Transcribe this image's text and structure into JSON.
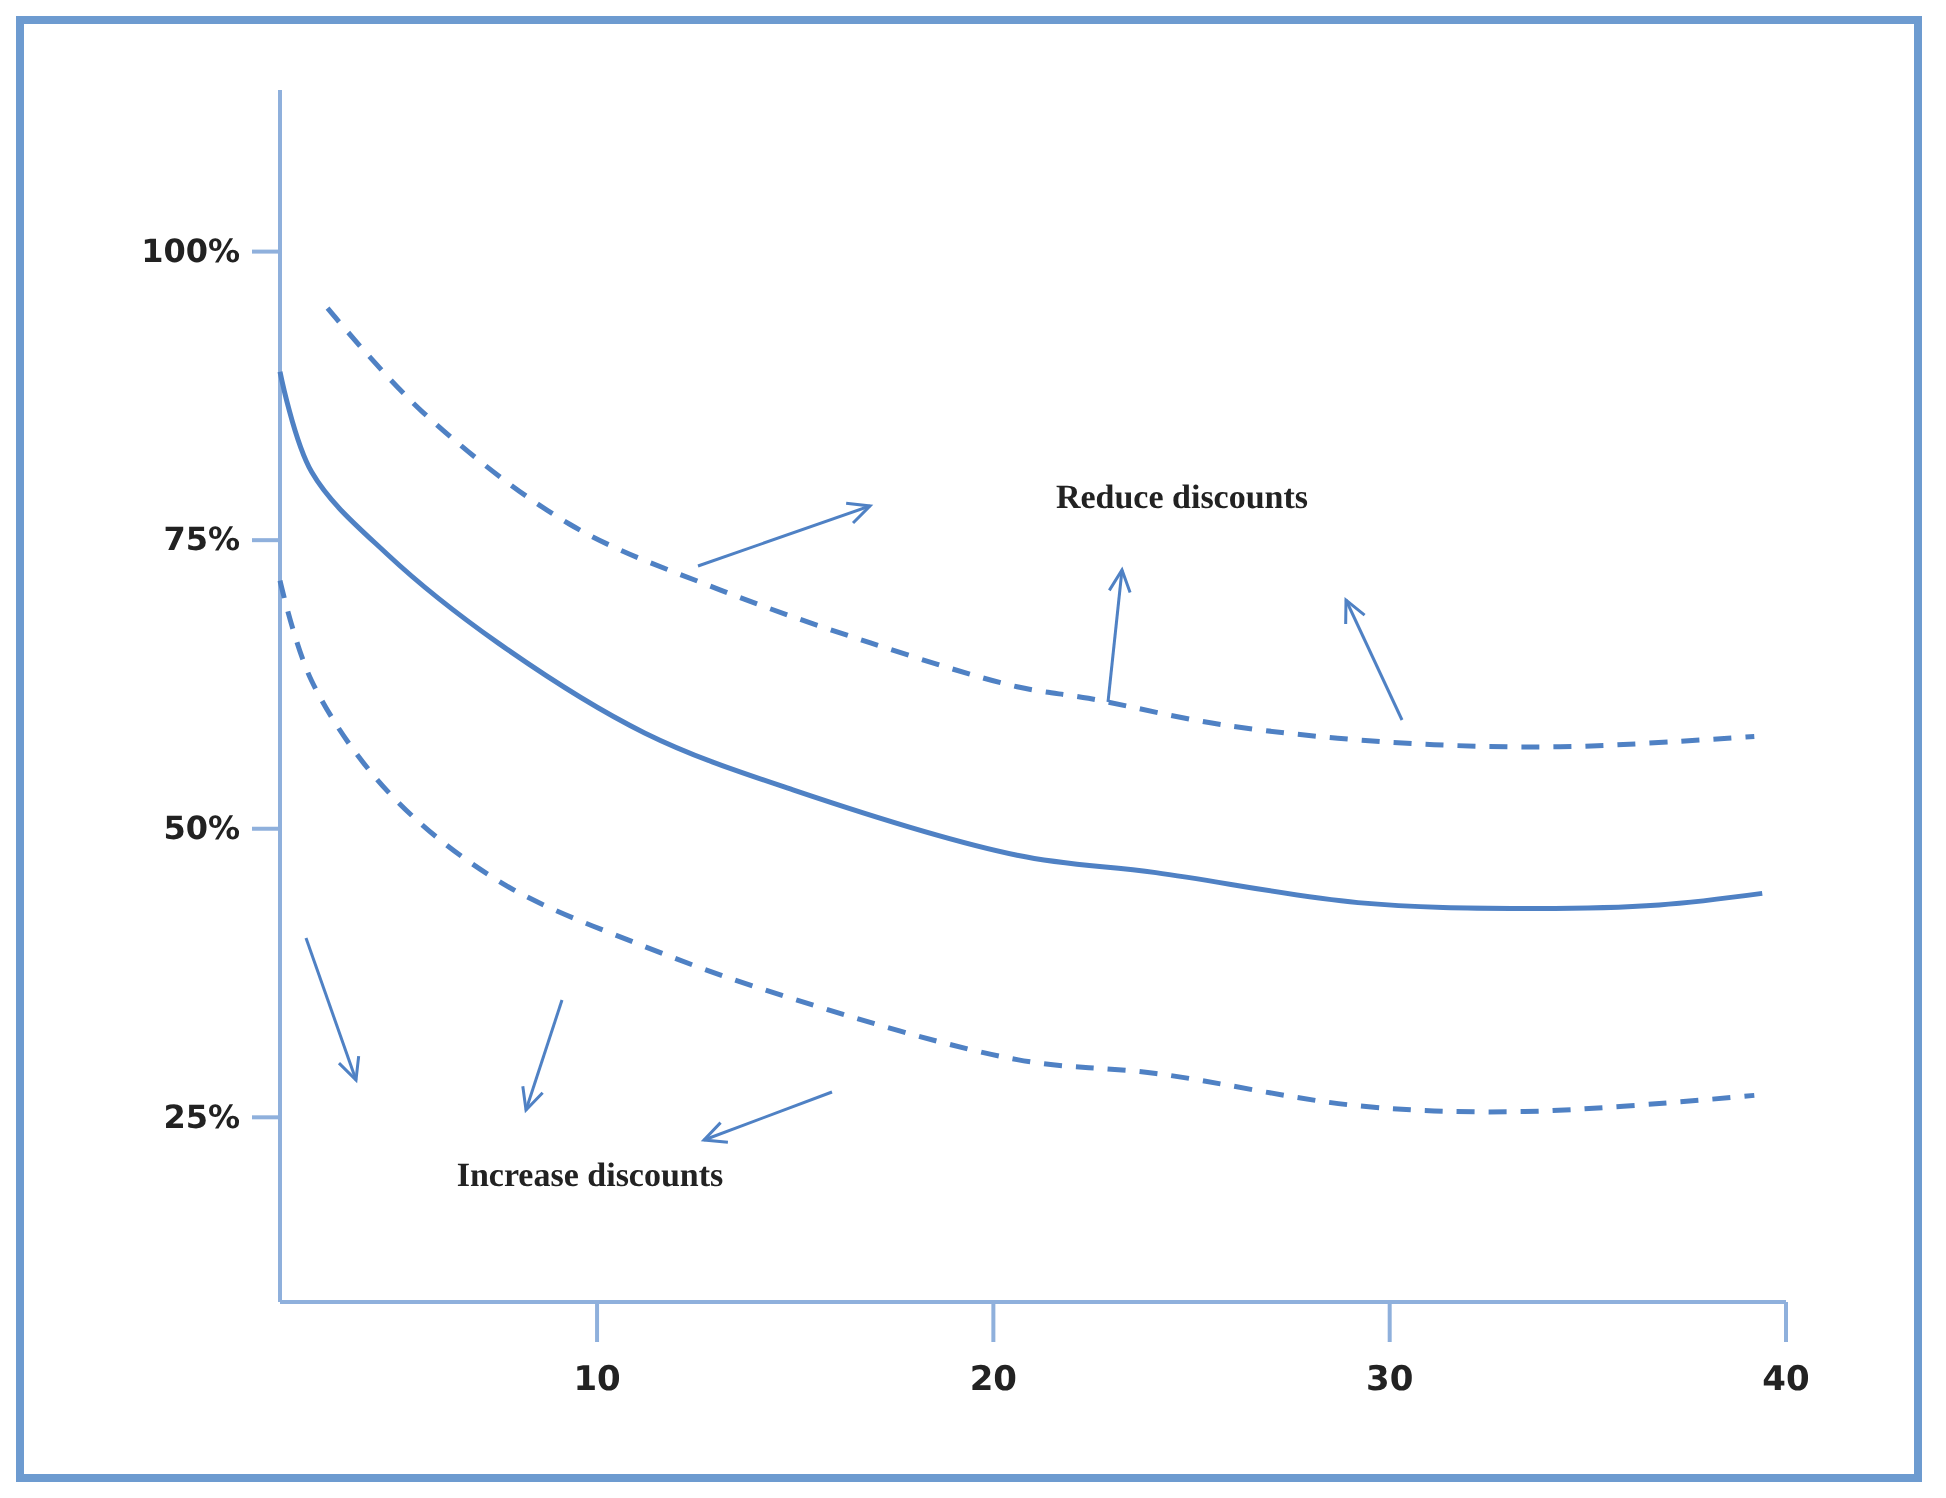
{
  "chart_data": {
    "type": "line",
    "xlim": [
      2,
      40
    ],
    "ylim": [
      9,
      114
    ],
    "xticks": [
      10,
      20,
      30,
      40
    ],
    "yticks": [
      {
        "value": 25,
        "label": "25%"
      },
      {
        "value": 50,
        "label": "50%"
      },
      {
        "value": 75,
        "label": "75%"
      },
      {
        "value": 100,
        "label": "100%"
      }
    ],
    "grid": false,
    "annotations": [
      "Reduce discounts",
      "Increase discounts"
    ],
    "series": [
      {
        "color": "#4f81c4",
        "line_style": "dashed",
        "x": [
          3.2,
          5.6,
          9.3,
          13.1,
          16.9,
          20.6,
          22.4,
          25.8,
          30,
          34.3,
          39.2
        ],
        "values": [
          95.1,
          86.1,
          76.4,
          70.7,
          66.1,
          62.3,
          61.3,
          59,
          57.5,
          57.1,
          58
        ]
      },
      {
        "color": "#4f81c4",
        "line_style": "solid",
        "x": [
          2,
          2.8,
          4.7,
          7.5,
          11.2,
          15,
          20.6,
          24.1,
          29.2,
          33.4,
          36.8,
          39.4
        ],
        "values": [
          89.6,
          80.9,
          73.8,
          66.1,
          58.3,
          53.3,
          47.7,
          46.2,
          43.6,
          43.1,
          43.4,
          44.4
        ]
      },
      {
        "color": "#4f81c4",
        "line_style": "dashed",
        "x": [
          2,
          2.8,
          4.7,
          7.5,
          11.2,
          15,
          20.6,
          24.1,
          29.2,
          33.4,
          39.2
        ],
        "values": [
          71.5,
          62.8,
          53.3,
          45.5,
          39.8,
          35.2,
          30,
          28.8,
          26,
          25.5,
          26.9
        ]
      }
    ]
  }
}
